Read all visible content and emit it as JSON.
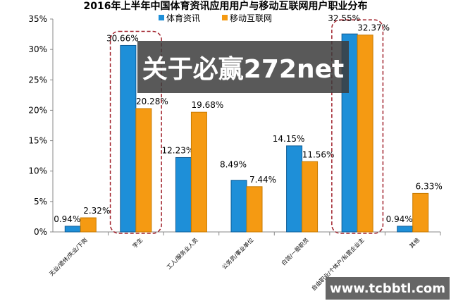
{
  "chart_data": {
    "type": "bar",
    "title": "2016年上半年中国体育资讯应用用户与移动互联网用户职业分布",
    "categories": [
      "无业/退休/失业/下岗",
      "学生",
      "工人/服务业人员",
      "公务员/事业单位",
      "白领/一般职员",
      "自由职业/个体户/私营企业主",
      "其他"
    ],
    "series": [
      {
        "name": "体育资讯",
        "color": "#1E8FD8",
        "values": [
          0.94,
          30.66,
          12.23,
          8.49,
          14.15,
          32.55,
          0.94
        ]
      },
      {
        "name": "移动互联网",
        "color": "#F59A12",
        "values": [
          2.32,
          20.28,
          19.68,
          7.44,
          11.56,
          32.37,
          6.33
        ]
      }
    ],
    "ylim": [
      0,
      35
    ],
    "yticks": [
      "0%",
      "5%",
      "10%",
      "15%",
      "20%",
      "25%",
      "30%",
      "35%"
    ],
    "legend": "top",
    "highlighted_categories": [
      "学生",
      "自由职业/个体户/私营企业主"
    ]
  },
  "watermarks": {
    "banner": "关于必赢272net",
    "site": "www.tcbbtl.com"
  }
}
